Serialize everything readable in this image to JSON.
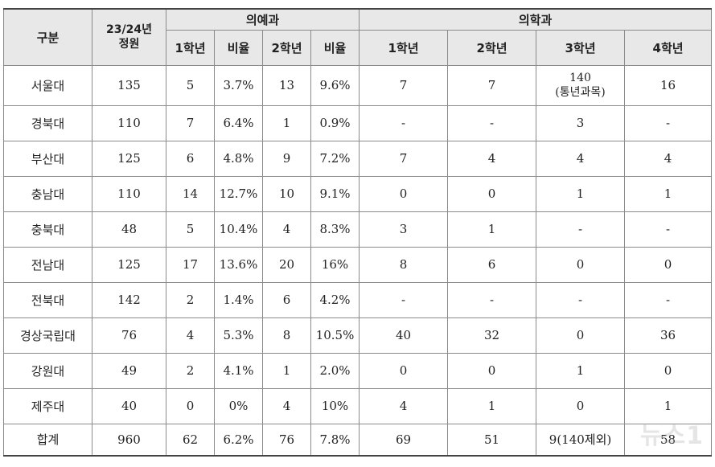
{
  "table": {
    "headers": {
      "category": "구분",
      "quota_line1": "23/24년",
      "quota_line2": "정원",
      "premed": "의예과",
      "med": "의학과",
      "premed_cols": [
        "1학년",
        "비율",
        "2학년",
        "비율"
      ],
      "med_cols": [
        "1학년",
        "2학년",
        "3학년",
        "4학년"
      ]
    },
    "rows": [
      {
        "cells": [
          "서울대",
          "135",
          "5",
          "3.7%",
          "13",
          "9.6%",
          "7",
          "7",
          "140",
          "16"
        ],
        "note": "(통년과목)"
      },
      {
        "cells": [
          "경북대",
          "110",
          "7",
          "6.4%",
          "1",
          "0.9%",
          "-",
          "-",
          "3",
          "-"
        ]
      },
      {
        "cells": [
          "부산대",
          "125",
          "6",
          "4.8%",
          "9",
          "7.2%",
          "7",
          "4",
          "4",
          "4"
        ]
      },
      {
        "cells": [
          "충남대",
          "110",
          "14",
          "12.7%",
          "10",
          "9.1%",
          "0",
          "0",
          "1",
          "1"
        ]
      },
      {
        "cells": [
          "충북대",
          "48",
          "5",
          "10.4%",
          "4",
          "8.3%",
          "3",
          "1",
          "-",
          "-"
        ]
      },
      {
        "cells": [
          "전남대",
          "125",
          "17",
          "13.6%",
          "20",
          "16%",
          "8",
          "6",
          "0",
          "0"
        ]
      },
      {
        "cells": [
          "전북대",
          "142",
          "2",
          "1.4%",
          "6",
          "4.2%",
          "-",
          "-",
          "-",
          "-"
        ]
      },
      {
        "cells": [
          "경상국립대",
          "76",
          "4",
          "5.3%",
          "8",
          "10.5%",
          "40",
          "32",
          "0",
          "36"
        ]
      },
      {
        "cells": [
          "강원대",
          "49",
          "2",
          "4.1%",
          "1",
          "2.0%",
          "0",
          "0",
          "1",
          "0"
        ]
      },
      {
        "cells": [
          "제주대",
          "40",
          "0",
          "0%",
          "4",
          "10%",
          "4",
          "1",
          "0",
          "1"
        ]
      },
      {
        "cells": [
          "합계",
          "960",
          "62",
          "6.2%",
          "76",
          "7.8%",
          "69",
          "51",
          "9(140제외)",
          "58"
        ]
      }
    ]
  },
  "watermark": "뉴스1"
}
